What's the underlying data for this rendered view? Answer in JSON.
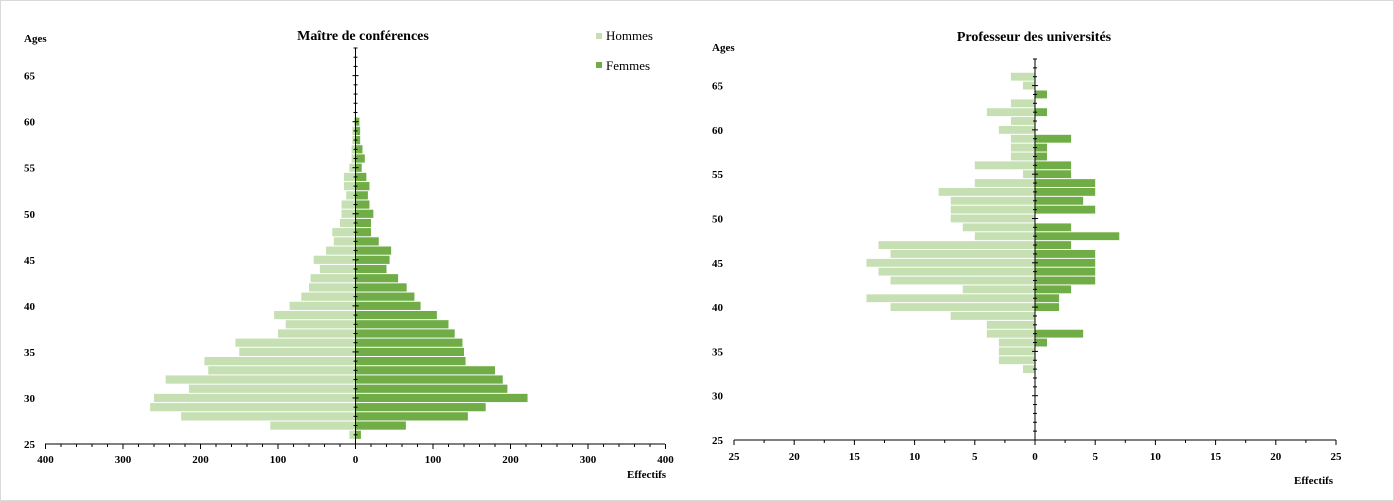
{
  "chart_data": [
    {
      "type": "bar",
      "orientation": "horizontal",
      "title": "Maître de conférences",
      "ylabel": "Ages",
      "xlabel": "Effectifs",
      "y_ticks": [
        "25",
        "30",
        "35",
        "40",
        "45",
        "50",
        "55",
        "60",
        "65"
      ],
      "x_ticks": [
        "400",
        "300",
        "200",
        "100",
        "0",
        "100",
        "200",
        "300",
        "400"
      ],
      "xlim": [
        -400,
        400
      ],
      "ylim": [
        25,
        68
      ],
      "colors": {
        "Hommes": "#c6e0b4",
        "Femmes": "#70ad47"
      },
      "legend": [
        "Hommes",
        "Femmes"
      ],
      "ages": [
        26,
        27,
        28,
        29,
        30,
        31,
        32,
        33,
        34,
        35,
        36,
        37,
        38,
        39,
        40,
        41,
        42,
        43,
        44,
        45,
        46,
        47,
        48,
        49,
        50,
        51,
        52,
        53,
        54,
        55,
        56,
        57,
        58,
        59,
        60,
        61,
        62,
        63,
        64,
        65,
        66,
        67
      ],
      "series": [
        {
          "name": "Hommes",
          "values": [
            8,
            110,
            225,
            265,
            260,
            215,
            245,
            190,
            195,
            150,
            155,
            100,
            90,
            105,
            85,
            70,
            60,
            58,
            46,
            54,
            38,
            28,
            30,
            20,
            18,
            18,
            12,
            15,
            15,
            8,
            5,
            5,
            4,
            4,
            2,
            1,
            0,
            0,
            0,
            0,
            0,
            0
          ]
        },
        {
          "name": "Femmes",
          "values": [
            7,
            65,
            145,
            168,
            222,
            196,
            190,
            180,
            142,
            140,
            138,
            128,
            120,
            105,
            84,
            76,
            66,
            55,
            40,
            44,
            46,
            30,
            20,
            20,
            23,
            18,
            16,
            18,
            14,
            8,
            12,
            9,
            6,
            6,
            5,
            0,
            0,
            0,
            0,
            0,
            0,
            0
          ]
        }
      ]
    },
    {
      "type": "bar",
      "orientation": "horizontal",
      "title": "Professeur des universités",
      "ylabel": "Ages",
      "xlabel": "Effectifs",
      "y_ticks": [
        "25",
        "30",
        "35",
        "40",
        "45",
        "50",
        "55",
        "60",
        "65"
      ],
      "x_ticks": [
        "25",
        "20",
        "15",
        "10",
        "5",
        "0",
        "5",
        "10",
        "15",
        "20",
        "25"
      ],
      "xlim": [
        -25,
        25
      ],
      "ylim": [
        25,
        68
      ],
      "colors": {
        "Hommes": "#c6e0b4",
        "Femmes": "#70ad47"
      },
      "ages": [
        33,
        34,
        35,
        36,
        37,
        38,
        39,
        40,
        41,
        42,
        43,
        44,
        45,
        46,
        47,
        48,
        49,
        50,
        51,
        52,
        53,
        54,
        55,
        56,
        57,
        58,
        59,
        60,
        61,
        62,
        63,
        64,
        65,
        66
      ],
      "series": [
        {
          "name": "Hommes",
          "values": [
            1,
            3,
            3,
            3,
            4,
            4,
            7,
            12,
            14,
            6,
            12,
            13,
            14,
            12,
            13,
            5,
            6,
            7,
            7,
            7,
            8,
            5,
            1,
            5,
            2,
            2,
            2,
            3,
            2,
            4,
            2,
            0,
            1,
            2
          ]
        },
        {
          "name": "Femmes",
          "values": [
            0,
            0,
            0,
            1,
            4,
            0,
            0,
            2,
            2,
            3,
            5,
            5,
            5,
            5,
            3,
            7,
            3,
            0,
            5,
            4,
            5,
            5,
            3,
            3,
            1,
            1,
            3,
            0,
            0,
            1,
            0,
            1,
            0,
            0
          ]
        }
      ]
    }
  ]
}
